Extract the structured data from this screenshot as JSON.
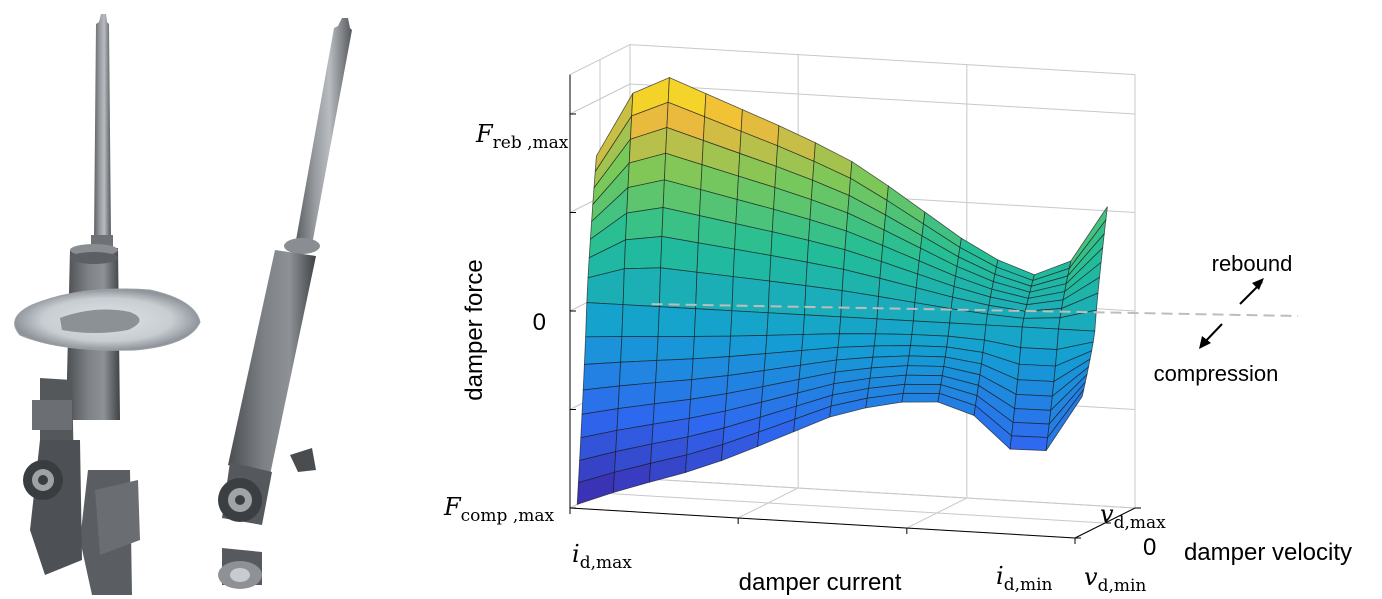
{
  "figure": {
    "left_panel": {
      "content": "two damper units",
      "units": [
        "strut-damper",
        "shock-absorber"
      ]
    },
    "arrows": {
      "up_label": "rebound",
      "down_label": "compression"
    }
  },
  "chart_data": {
    "type": "surface3d",
    "title": "",
    "zlabel": "damper force",
    "xlabel": "damper current",
    "ylabel": "damper velocity",
    "z_ticks": [
      {
        "base": "F",
        "sub": "reb ,max",
        "value": 1
      },
      {
        "base": "",
        "sub": "",
        "text": "0",
        "value": 0
      },
      {
        "base": "F",
        "sub": "comp ,max",
        "value": -1
      }
    ],
    "x_ticks": [
      {
        "base": "i",
        "sub": "d,max",
        "position": "front-left"
      },
      {
        "base": "i",
        "sub": "d,min",
        "position": "front-right"
      }
    ],
    "y_ticks": [
      {
        "base": "v",
        "sub": "d,max",
        "position": "back"
      },
      {
        "text": "0",
        "position": "middle"
      },
      {
        "base": "v",
        "sub": "d,min",
        "position": "front"
      }
    ],
    "zero_line": true,
    "grid": true,
    "colormap": "parula",
    "surface_profile": [
      {
        "u": 0.0,
        "top": 0.72,
        "bottom": -1.0
      },
      {
        "u": 0.1,
        "top": 1.18,
        "bottom": -0.9
      },
      {
        "u": 0.2,
        "top": 1.08,
        "bottom": -0.82
      },
      {
        "u": 0.3,
        "top": 0.98,
        "bottom": -0.72
      },
      {
        "u": 0.4,
        "top": 0.88,
        "bottom": -0.6
      },
      {
        "u": 0.5,
        "top": 0.76,
        "bottom": -0.48
      },
      {
        "u": 0.6,
        "top": 0.6,
        "bottom": -0.4
      },
      {
        "u": 0.7,
        "top": 0.42,
        "bottom": -0.36
      },
      {
        "u": 0.8,
        "top": 0.28,
        "bottom": -0.44
      },
      {
        "u": 0.9,
        "top": 0.2,
        "bottom": -0.7
      },
      {
        "u": 1.0,
        "top": 0.6,
        "bottom": -0.3
      }
    ]
  }
}
